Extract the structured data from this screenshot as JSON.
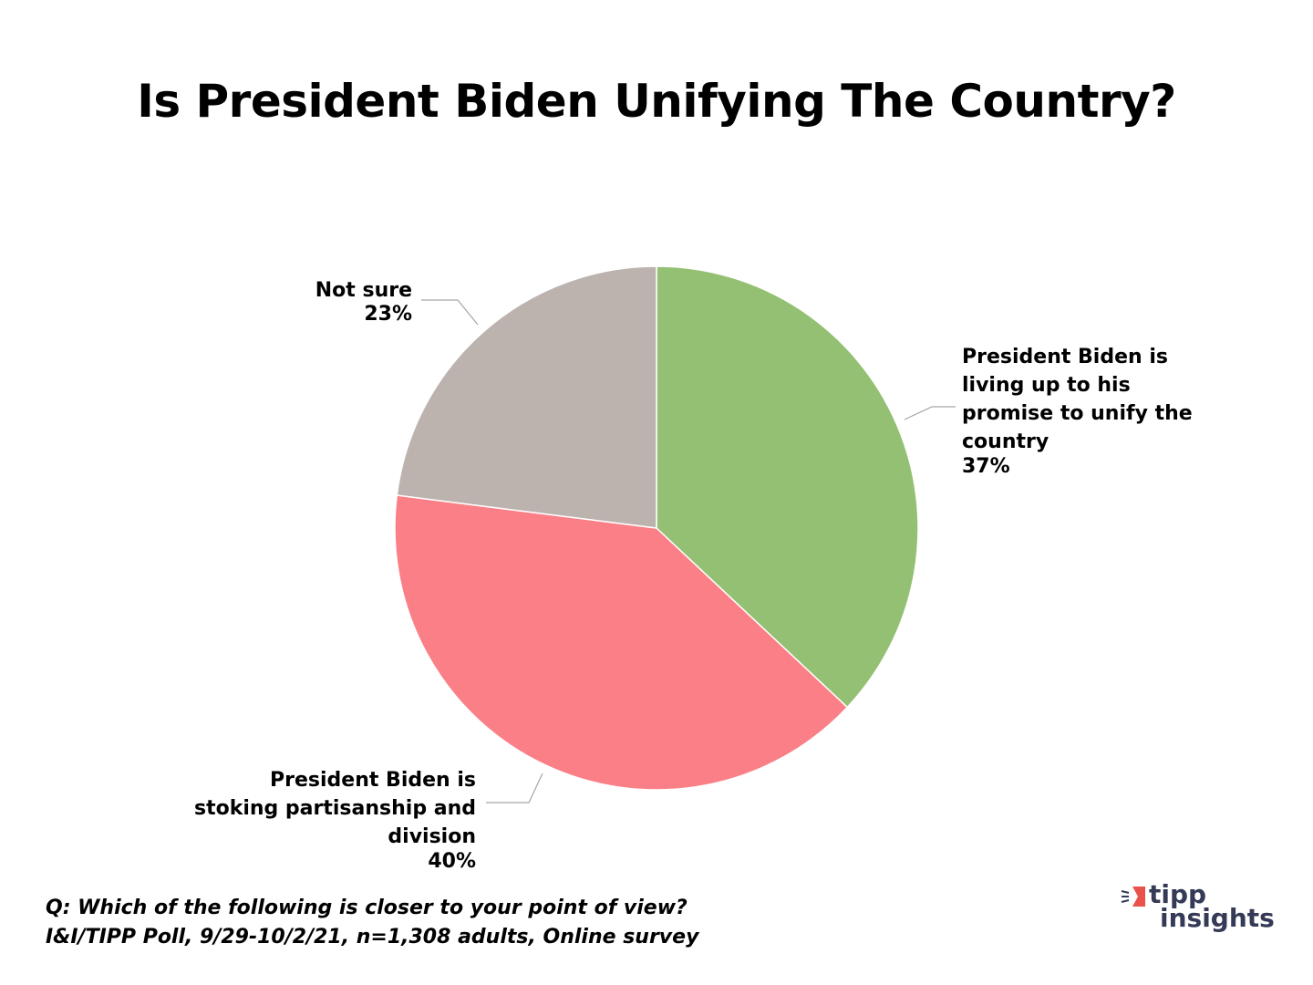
{
  "chart_data": {
    "type": "pie",
    "title": "Is President Biden Unifying The Country?",
    "start_angle_deg": 0,
    "direction": "clockwise",
    "slices": [
      {
        "label": "President Biden is living up to his promise to unify the country",
        "value": 37,
        "value_label": "37%",
        "color": "#93c072"
      },
      {
        "label": "President Biden is stoking partisanship and division",
        "value": 40,
        "value_label": "40%",
        "color": "#fa7f86"
      },
      {
        "label": "Not sure",
        "value": 23,
        "value_label": "23%",
        "color": "#bcb3ae"
      }
    ]
  },
  "footnote": {
    "question": "Q: Which of the following is closer to your point of view?",
    "source": "I&I/TIPP Poll, 9/29-10/2/21, n=1,308 adults, Online survey"
  },
  "logo": {
    "line1": "tipp",
    "line2": "insights",
    "accent": "#e9524a",
    "text_color": "#353a56"
  }
}
